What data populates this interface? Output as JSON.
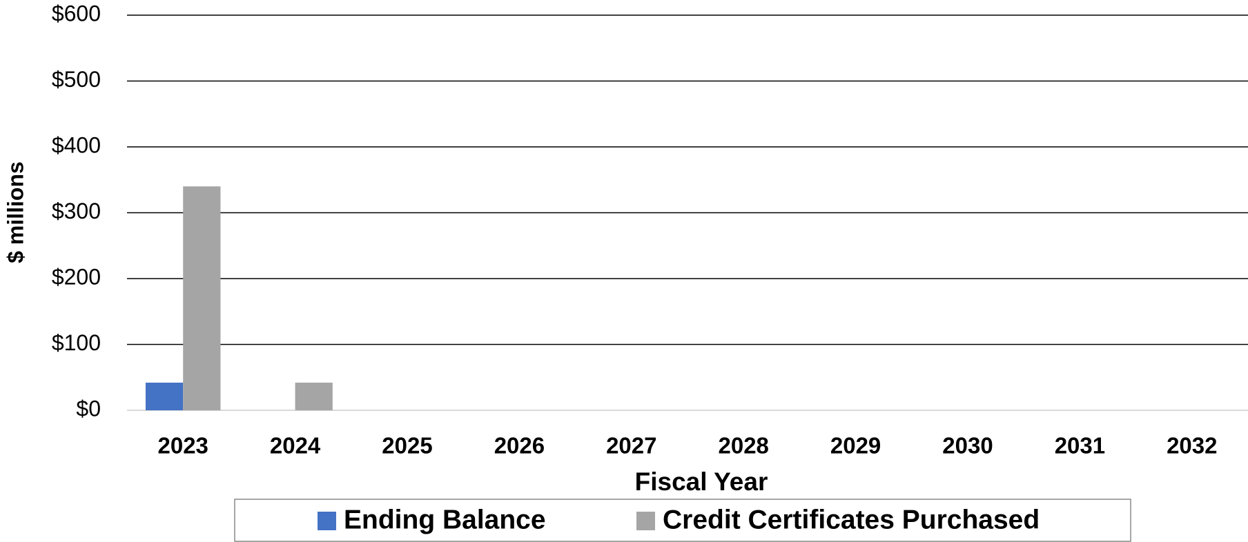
{
  "chart_data": {
    "type": "bar",
    "y_label": "$ millions",
    "x_label": "Fiscal Year",
    "categories": [
      "2023",
      "2024",
      "2025",
      "2026",
      "2027",
      "2028",
      "2029",
      "2030",
      "2031",
      "2032"
    ],
    "series": [
      {
        "name": "Ending Balance",
        "color": "#4472c4",
        "values": [
          42,
          0,
          0,
          0,
          0,
          0,
          0,
          0,
          0,
          0
        ]
      },
      {
        "name": "Credit Certificates Purchased",
        "color": "#a5a5a5",
        "values": [
          340,
          42,
          0,
          0,
          0,
          0,
          0,
          0,
          0,
          0
        ]
      }
    ],
    "ylim": [
      0,
      600
    ],
    "yticks": [
      {
        "value": 0,
        "label": "$0"
      },
      {
        "value": 100,
        "label": "$100"
      },
      {
        "value": 200,
        "label": "$200"
      },
      {
        "value": 300,
        "label": "$300"
      },
      {
        "value": 400,
        "label": "$400"
      },
      {
        "value": 500,
        "label": "$500"
      },
      {
        "value": 600,
        "label": "$600"
      }
    ],
    "grid": true,
    "legend": "bottom"
  }
}
